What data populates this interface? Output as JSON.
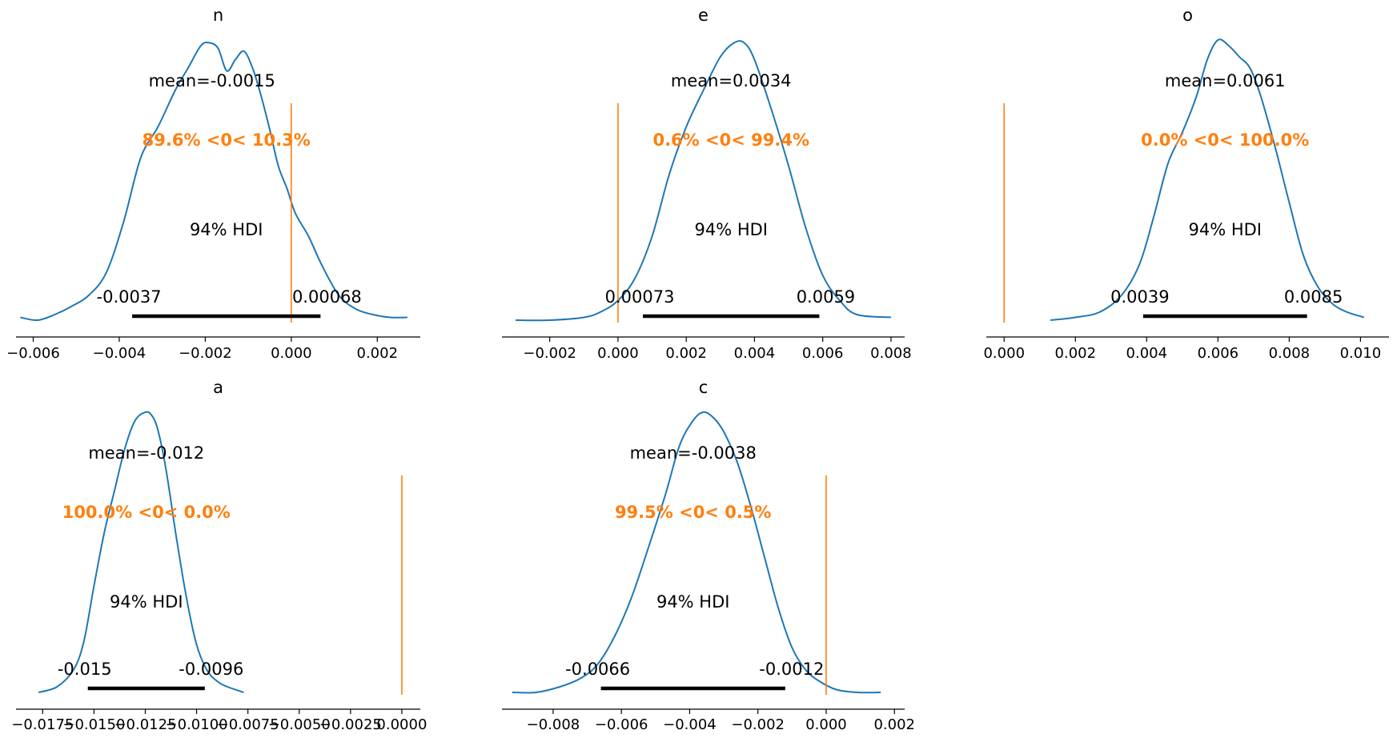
{
  "colors": {
    "kde": "#1f77b4",
    "reference": "#ff7f0e",
    "hdi": "#000000",
    "axis": "#000000"
  },
  "chart_data": [
    {
      "type": "area",
      "title": "n",
      "mean_label": "mean=-0.0015",
      "ref_label": "89.6% <0< 10.3%",
      "hdi_label": "94% HDI",
      "hdi_low_label": "-0.0037",
      "hdi_high_label": "0.00068",
      "hdi": [
        -0.0037,
        0.00068
      ],
      "ref_val": 0,
      "xlim": [
        -0.0064,
        0.003
      ],
      "xticks": [
        -0.006,
        -0.004,
        -0.002,
        0.0,
        0.002
      ],
      "xtick_labels": [
        "−0.006",
        "−0.004",
        "−0.002",
        "0.000",
        "0.002"
      ],
      "kde_x": [
        -0.0063,
        -0.0059,
        -0.0055,
        -0.0051,
        -0.0047,
        -0.0043,
        -0.0039,
        -0.0035,
        -0.0031,
        -0.0027,
        -0.0024,
        -0.0021,
        -0.0019,
        -0.0017,
        -0.0015,
        -0.0013,
        -0.0011,
        -0.0009,
        -0.0007,
        -0.0005,
        -0.0003,
        -0.0001,
        0.0001,
        0.0004,
        0.0007,
        0.0011,
        0.0015,
        0.0019,
        0.0023,
        0.0027
      ],
      "kde_y": [
        0.01,
        0.0,
        0.02,
        0.05,
        0.09,
        0.17,
        0.35,
        0.58,
        0.69,
        0.82,
        0.9,
        0.98,
        0.99,
        0.97,
        0.89,
        0.93,
        0.96,
        0.9,
        0.8,
        0.68,
        0.55,
        0.47,
        0.38,
        0.3,
        0.2,
        0.09,
        0.04,
        0.02,
        0.01,
        0.01
      ]
    },
    {
      "type": "area",
      "title": "e",
      "mean_label": "mean=0.0034",
      "ref_label": "0.6% <0< 99.4%",
      "hdi_label": "94% HDI",
      "hdi_low_label": "0.00073",
      "hdi_high_label": "0.0059",
      "hdi": [
        0.00073,
        0.0059
      ],
      "ref_val": 0,
      "xlim": [
        -0.0034,
        0.0084
      ],
      "xticks": [
        -0.002,
        0.0,
        0.002,
        0.004,
        0.006,
        0.008
      ],
      "xtick_labels": [
        "−0.002",
        "0.000",
        "0.002",
        "0.004",
        "0.006",
        "0.008"
      ],
      "kde_x": [
        -0.003,
        -0.002,
        -0.001,
        -0.0005,
        0.0,
        0.0005,
        0.001,
        0.0015,
        0.002,
        0.0025,
        0.003,
        0.0034,
        0.0037,
        0.004,
        0.0045,
        0.005,
        0.0055,
        0.006,
        0.0065,
        0.007,
        0.008
      ],
      "kde_y": [
        0.0,
        0.0,
        0.01,
        0.03,
        0.07,
        0.15,
        0.3,
        0.52,
        0.69,
        0.82,
        0.94,
        0.99,
        0.99,
        0.93,
        0.75,
        0.55,
        0.33,
        0.16,
        0.07,
        0.02,
        0.01
      ]
    },
    {
      "type": "area",
      "title": "o",
      "mean_label": "mean=0.0061",
      "ref_label": "0.0% <0< 100.0%",
      "hdi_label": "94% HDI",
      "hdi_low_label": "0.0039",
      "hdi_high_label": "0.0085",
      "hdi": [
        0.0039,
        0.0085
      ],
      "ref_val": 0,
      "xlim": [
        -0.0005,
        0.0108
      ],
      "xticks": [
        0.0,
        0.002,
        0.004,
        0.006,
        0.008,
        0.01
      ],
      "xtick_labels": [
        "0.000",
        "0.002",
        "0.004",
        "0.006",
        "0.008",
        "0.010"
      ],
      "kde_x": [
        0.0013,
        0.002,
        0.0027,
        0.0033,
        0.0038,
        0.0042,
        0.0046,
        0.005,
        0.0054,
        0.0057,
        0.006,
        0.0063,
        0.0066,
        0.0069,
        0.0072,
        0.0076,
        0.008,
        0.0084,
        0.0088,
        0.0092,
        0.0096,
        0.0101
      ],
      "kde_y": [
        0.0,
        0.01,
        0.03,
        0.09,
        0.2,
        0.37,
        0.56,
        0.67,
        0.8,
        0.93,
        1.0,
        0.98,
        0.94,
        0.9,
        0.8,
        0.62,
        0.42,
        0.23,
        0.12,
        0.06,
        0.03,
        0.01
      ]
    },
    {
      "type": "area",
      "title": "a",
      "mean_label": "mean=-0.012",
      "ref_label": "100.0% <0< 0.0%",
      "hdi_label": "94% HDI",
      "hdi_low_label": "-0.015",
      "hdi_high_label": "-0.0096",
      "hdi": [
        -0.0153,
        -0.0096
      ],
      "ref_val": 0,
      "xlim": [
        -0.0188,
        0.0009
      ],
      "xticks": [
        -0.0175,
        -0.015,
        -0.0125,
        -0.01,
        -0.0075,
        -0.005,
        -0.0025,
        0.0
      ],
      "xtick_labels": [
        "−0.0175",
        "−0.0150",
        "−0.0125",
        "−0.0100",
        "−0.0075",
        "−0.0050",
        "−0.0025",
        "0.0000"
      ],
      "kde_x": [
        -0.0177,
        -0.0168,
        -0.016,
        -0.0155,
        -0.015,
        -0.0145,
        -0.014,
        -0.0135,
        -0.013,
        -0.0125,
        -0.0122,
        -0.0119,
        -0.0115,
        -0.011,
        -0.0105,
        -0.01,
        -0.0095,
        -0.009,
        -0.0085,
        -0.0077
      ],
      "kde_y": [
        0.0,
        0.02,
        0.08,
        0.18,
        0.38,
        0.57,
        0.72,
        0.87,
        0.97,
        1.0,
        0.99,
        0.94,
        0.8,
        0.56,
        0.34,
        0.17,
        0.08,
        0.04,
        0.02,
        0.0
      ]
    },
    {
      "type": "area",
      "title": "c",
      "mean_label": "mean=-0.0038",
      "ref_label": "99.5% <0< 0.5%",
      "hdi_label": "94% HDI",
      "hdi_low_label": "-0.0066",
      "hdi_high_label": "-0.0012",
      "hdi": [
        -0.0066,
        -0.0012
      ],
      "ref_val": 0,
      "xlim": [
        -0.0095,
        0.0023
      ],
      "xticks": [
        -0.008,
        -0.006,
        -0.004,
        -0.002,
        0.0,
        0.002
      ],
      "xtick_labels": [
        "−0.008",
        "−0.006",
        "−0.004",
        "−0.002",
        "0.000",
        "0.002"
      ],
      "kde_x": [
        -0.0092,
        -0.0085,
        -0.0078,
        -0.0072,
        -0.0067,
        -0.0062,
        -0.0057,
        -0.0052,
        -0.0047,
        -0.0043,
        -0.0039,
        -0.0036,
        -0.0033,
        -0.003,
        -0.0026,
        -0.0022,
        -0.0018,
        -0.0014,
        -0.001,
        -0.0006,
        -0.0002,
        0.0003,
        0.0009,
        0.0016
      ],
      "kde_y": [
        0.0,
        0.0,
        0.02,
        0.05,
        0.1,
        0.2,
        0.34,
        0.52,
        0.71,
        0.88,
        0.97,
        1.0,
        0.98,
        0.93,
        0.82,
        0.66,
        0.48,
        0.3,
        0.16,
        0.08,
        0.04,
        0.01,
        0.0,
        0.0
      ]
    }
  ]
}
